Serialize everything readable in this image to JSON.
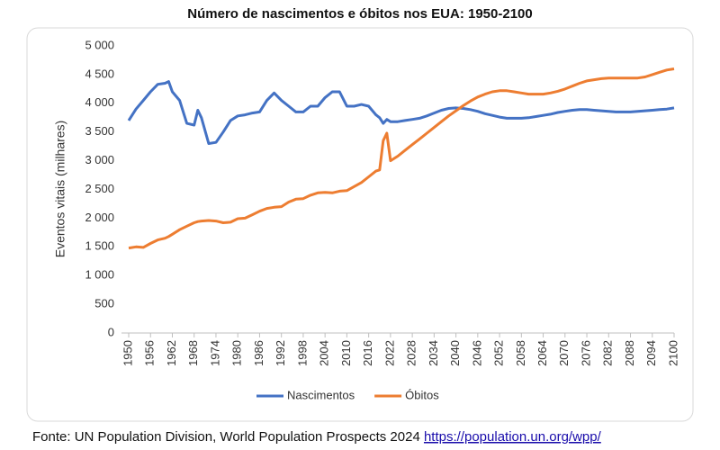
{
  "chart_data": {
    "type": "line",
    "title": "Número de nascimentos e óbitos nos EUA: 1950-2100",
    "ylabel": "Eventos vitais (milhares)",
    "source": "Fonte: UN Population Division, World Population Prospects 2024",
    "source_link": "https://population.un.org/wpp/",
    "x": [
      1950,
      1952,
      1954,
      1956,
      1958,
      1960,
      1961,
      1962,
      1964,
      1966,
      1968,
      1969,
      1970,
      1972,
      1974,
      1976,
      1978,
      1980,
      1982,
      1984,
      1986,
      1988,
      1990,
      1992,
      1994,
      1996,
      1998,
      2000,
      2002,
      2004,
      2006,
      2008,
      2010,
      2012,
      2014,
      2016,
      2018,
      2019,
      2020,
      2021,
      2022,
      2024,
      2026,
      2028,
      2030,
      2032,
      2034,
      2036,
      2038,
      2040,
      2042,
      2044,
      2046,
      2048,
      2050,
      2052,
      2054,
      2056,
      2058,
      2060,
      2062,
      2064,
      2066,
      2068,
      2070,
      2072,
      2074,
      2076,
      2078,
      2080,
      2082,
      2084,
      2086,
      2088,
      2090,
      2092,
      2094,
      2096,
      2098,
      2100
    ],
    "series": [
      {
        "name": "Nascimentos",
        "color": "#4472c4",
        "values": [
          3700,
          3900,
          4050,
          4200,
          4330,
          4350,
          4380,
          4200,
          4050,
          3650,
          3620,
          3880,
          3750,
          3300,
          3320,
          3500,
          3700,
          3780,
          3800,
          3830,
          3850,
          4050,
          4180,
          4050,
          3950,
          3850,
          3850,
          3950,
          3950,
          4100,
          4200,
          4200,
          3950,
          3950,
          3980,
          3950,
          3800,
          3750,
          3650,
          3720,
          3680,
          3680,
          3700,
          3720,
          3740,
          3780,
          3830,
          3880,
          3910,
          3920,
          3910,
          3890,
          3860,
          3820,
          3790,
          3760,
          3740,
          3740,
          3740,
          3750,
          3770,
          3790,
          3810,
          3840,
          3860,
          3880,
          3890,
          3890,
          3880,
          3870,
          3860,
          3850,
          3850,
          3850,
          3860,
          3870,
          3880,
          3890,
          3900,
          3920
        ]
      },
      {
        "name": "Óbitos",
        "color": "#ed7d31",
        "values": [
          1480,
          1500,
          1490,
          1560,
          1620,
          1650,
          1680,
          1720,
          1800,
          1860,
          1920,
          1940,
          1950,
          1960,
          1950,
          1920,
          1930,
          1990,
          2000,
          2060,
          2120,
          2170,
          2190,
          2200,
          2280,
          2330,
          2340,
          2400,
          2440,
          2450,
          2440,
          2470,
          2480,
          2550,
          2620,
          2720,
          2820,
          2840,
          3350,
          3480,
          3000,
          3080,
          3180,
          3280,
          3380,
          3480,
          3580,
          3680,
          3780,
          3870,
          3960,
          4040,
          4110,
          4160,
          4200,
          4220,
          4220,
          4200,
          4180,
          4160,
          4160,
          4160,
          4180,
          4210,
          4250,
          4300,
          4350,
          4390,
          4410,
          4430,
          4440,
          4440,
          4440,
          4440,
          4440,
          4460,
          4500,
          4540,
          4580,
          4600
        ]
      }
    ],
    "xlim": [
      1950,
      2100
    ],
    "xticks": [
      1950,
      1956,
      1962,
      1968,
      1974,
      1980,
      1986,
      1992,
      1998,
      2004,
      2010,
      2016,
      2022,
      2028,
      2034,
      2040,
      2046,
      2052,
      2058,
      2064,
      2070,
      2076,
      2082,
      2088,
      2094,
      2100
    ],
    "ylim": [
      0,
      5000
    ],
    "yticks": [
      0,
      500,
      {
        "value": 1000,
        "label": "1 000"
      },
      {
        "value": 1500,
        "label": "1 500"
      },
      {
        "value": 2000,
        "label": "2 000"
      },
      {
        "value": 2500,
        "label": "2 500"
      },
      {
        "value": 3000,
        "label": "3 000"
      },
      {
        "value": 3500,
        "label": "3 500"
      },
      {
        "value": 4000,
        "label": "4 000"
      },
      {
        "value": 4500,
        "label": "4 500"
      },
      {
        "value": 5000,
        "label": "5 000"
      }
    ],
    "grid": false,
    "legend": "bottom"
  }
}
